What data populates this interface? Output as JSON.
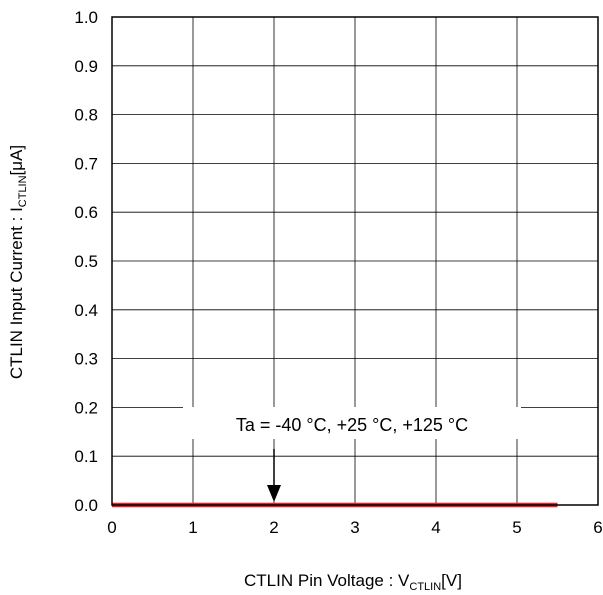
{
  "chart_data": {
    "type": "line",
    "title": "",
    "xlabel": {
      "main": "CTLIN Pin Voltage : V",
      "sub": "CTLIN",
      "unit": "[V]"
    },
    "ylabel": {
      "main": "CTLIN Input Current : I",
      "sub": "CTLIN",
      "unit": "[μA]"
    },
    "xlim": [
      0,
      6
    ],
    "ylim": [
      0,
      1.0
    ],
    "x_ticks": [
      "0",
      "1",
      "2",
      "3",
      "4",
      "5",
      "6"
    ],
    "y_ticks": [
      "0.0",
      "0.1",
      "0.2",
      "0.3",
      "0.4",
      "0.5",
      "0.6",
      "0.7",
      "0.8",
      "0.9",
      "1.0"
    ],
    "grid": true,
    "series": [
      {
        "x": [
          0,
          5.5
        ],
        "y": [
          0.0,
          0.0
        ],
        "color": "#e8202a"
      }
    ],
    "annotation": {
      "text": "Ta = -40 °C, +25 °C, +125 °C",
      "arrow_to": [
        2,
        0.0
      ]
    }
  }
}
